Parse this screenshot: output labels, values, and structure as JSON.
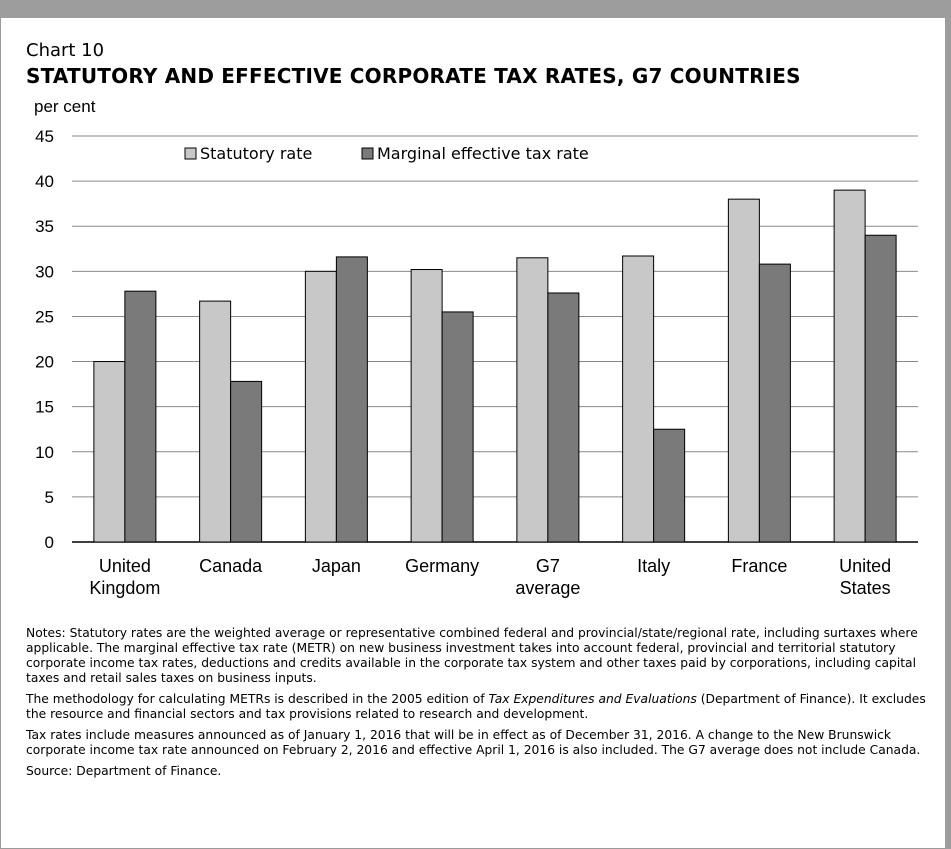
{
  "chart_number": "Chart 10",
  "chart_title": "STATUTORY AND EFFECTIVE CORPORATE TAX RATES, G7 COUNTRIES",
  "chart_data": {
    "type": "bar",
    "ylabel": "per cent",
    "ylim": [
      0,
      45
    ],
    "yticks": [
      "0",
      "5",
      "10",
      "15",
      "20",
      "25",
      "30",
      "35",
      "40",
      "45"
    ],
    "grid": true,
    "legend_position": "top",
    "categories": [
      [
        "United",
        "Kingdom"
      ],
      [
        "Canada"
      ],
      [
        "Japan"
      ],
      [
        "Germany"
      ],
      [
        "G7",
        "average"
      ],
      [
        "Italy"
      ],
      [
        "France"
      ],
      [
        "United",
        "States"
      ]
    ],
    "series": [
      {
        "name": "Statutory rate",
        "color": "#c8c8c8",
        "values": [
          20.0,
          26.7,
          30.0,
          30.2,
          31.5,
          31.7,
          38.0,
          39.0
        ]
      },
      {
        "name": "Marginal effective tax rate",
        "color": "#7a7a7a",
        "values": [
          27.8,
          17.8,
          31.6,
          25.5,
          27.6,
          12.5,
          30.8,
          34.0
        ]
      }
    ]
  },
  "notes": {
    "note1": "Notes: Statutory rates are the weighted average or representative combined federal and provincial/state/regional rate, including surtaxes where applicable. The marginal effective tax rate (METR) on new business investment takes into account federal, provincial and territorial statutory corporate income tax rates, deductions and credits available in the corporate tax system and other taxes paid by corporations, including capital taxes and retail sales taxes on business inputs.",
    "note2_prefix": "The methodology for calculating METRs is described in the 2005 edition of ",
    "note2_italic": "Tax Expenditures and Evaluations",
    "note2_suffix": " (Department of Finance). It excludes the resource and financial sectors and tax provisions related to research and development.",
    "note3": "Tax rates include measures announced as of January 1, 2016 that will be in effect as of December 31, 2016. A change to the New Brunswick corporate income tax rate announced on February 2, 2016 and effective April 1, 2016 is also included. The G7 average does not include Canada.",
    "source": "Source: Department of Finance."
  }
}
